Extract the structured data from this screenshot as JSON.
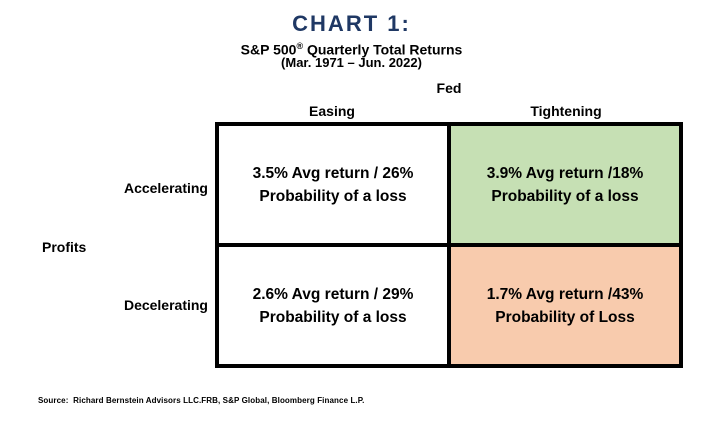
{
  "header": {
    "title": "CHART 1:",
    "title_color": "#1F3864",
    "subtitle_pre": "S&P 500",
    "subtitle_reg_mark": "®",
    "subtitle_post": " Quarterly Total Returns",
    "period": "(Mar. 1971 – Jun. 2022)"
  },
  "matrix": {
    "col_axis_label": "Fed",
    "row_axis_label": "Profits",
    "col_headers": [
      "Easing",
      "Tightening"
    ],
    "row_headers": [
      "Accelerating",
      "Decelerating"
    ],
    "cells": {
      "accelerating_easing": {
        "line1": "3.5% Avg return / 26%",
        "line2": "Probability of a loss",
        "bg": "#FFFFFF"
      },
      "accelerating_tightening": {
        "line1": "3.9% Avg return /18%",
        "line2": "Probability of a loss",
        "bg": "#C6E0B4"
      },
      "decelerating_easing": {
        "line1": "2.6% Avg return / 29%",
        "line2": "Probability of a loss",
        "bg": "#FFFFFF"
      },
      "decelerating_tightening": {
        "line1": "1.7% Avg return /43%",
        "line2": "Probability of Loss",
        "bg": "#F8CBAD"
      }
    },
    "colors": {
      "border": "#000000",
      "highlight_green": "#C6E0B4",
      "highlight_orange": "#F8CBAD"
    }
  },
  "footer": {
    "source": "Source:  Richard Bernstein Advisors LLC.FRB, S&P Global, Bloomberg Finance L.P."
  },
  "chart_data": {
    "type": "table",
    "title": "CHART 1: S&P 500® Quarterly Total Returns (Mar. 1971 – Jun. 2022)",
    "column_axis": "Fed",
    "row_axis": "Profits",
    "columns": [
      "Easing",
      "Tightening"
    ],
    "rows": [
      "Accelerating",
      "Decelerating"
    ],
    "cells": [
      [
        {
          "row": "Accelerating",
          "col": "Easing",
          "avg_return_pct": 3.5,
          "probability_of_loss_pct": 26
        },
        {
          "row": "Accelerating",
          "col": "Tightening",
          "avg_return_pct": 3.9,
          "probability_of_loss_pct": 18
        }
      ],
      [
        {
          "row": "Decelerating",
          "col": "Easing",
          "avg_return_pct": 2.6,
          "probability_of_loss_pct": 29
        },
        {
          "row": "Decelerating",
          "col": "Tightening",
          "avg_return_pct": 1.7,
          "probability_of_loss_pct": 43
        }
      ]
    ],
    "cell_colors": [
      [
        "#FFFFFF",
        "#C6E0B4"
      ],
      [
        "#FFFFFF",
        "#F8CBAD"
      ]
    ],
    "legend_position": "none",
    "grid": false
  }
}
